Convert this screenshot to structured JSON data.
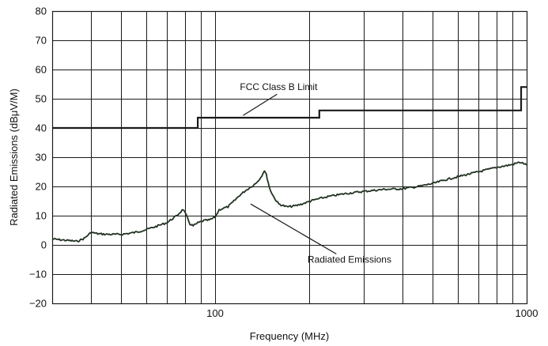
{
  "chart_data": {
    "type": "line",
    "title": "",
    "xlabel": "Frequency (MHz)",
    "ylabel": "Radiated Emissions (dBμV/M)",
    "x_scale": "log",
    "xlim": [
      30,
      1000
    ],
    "ylim": [
      -20,
      80
    ],
    "grid": true,
    "x_major_ticks": [
      100,
      1000
    ],
    "x_tick_labels": [
      "100",
      "1000"
    ],
    "x_minor_grid": [
      30,
      40,
      50,
      60,
      70,
      80,
      90,
      200,
      300,
      400,
      500,
      600,
      700,
      800,
      900
    ],
    "y_ticks": [
      -20,
      -10,
      0,
      10,
      20,
      30,
      40,
      50,
      60,
      70,
      80
    ],
    "y_tick_labels": [
      "−20",
      "−10",
      "0",
      "10",
      "20",
      "30",
      "40",
      "50",
      "60",
      "70",
      "80"
    ],
    "series": [
      {
        "name": "FCC Class B Limit",
        "color": "#1a1a1a",
        "step": true,
        "x": [
          30,
          88,
          88,
          216,
          216,
          960,
          960,
          1000
        ],
        "y": [
          40,
          40,
          43.5,
          43.5,
          46,
          46,
          54,
          54
        ]
      },
      {
        "name": "Radiated Emissions",
        "color": "#223322",
        "x": [
          30,
          33,
          36,
          38,
          40,
          42,
          45,
          50,
          55,
          60,
          65,
          70,
          75,
          79,
          81,
          83,
          85,
          88,
          92,
          96,
          100,
          103,
          106,
          110,
          115,
          120,
          125,
          130,
          135,
          140,
          144,
          146,
          148,
          150,
          155,
          160,
          170,
          180,
          190,
          200,
          210,
          230,
          260,
          300,
          350,
          400,
          450,
          500,
          550,
          600,
          700,
          800,
          900,
          950,
          970,
          1000
        ],
        "y": [
          2,
          1.6,
          1.2,
          2.2,
          4.3,
          3.8,
          3.6,
          3.6,
          4.2,
          5.2,
          6.4,
          7.6,
          9.8,
          12.2,
          9.8,
          7.2,
          6.5,
          7.5,
          8.3,
          8.5,
          9.5,
          12.0,
          12.5,
          13.0,
          15.0,
          17.0,
          18.5,
          19.8,
          21.0,
          23.0,
          25.5,
          24.0,
          21.5,
          19.0,
          16.0,
          14.0,
          13.0,
          13.3,
          14.0,
          14.8,
          15.5,
          16.5,
          17.5,
          18.3,
          19.0,
          19.2,
          20.0,
          21.0,
          22.3,
          23.3,
          25.0,
          26.5,
          27.5,
          28.3,
          28.0,
          27.3
        ]
      }
    ],
    "annotations": [
      {
        "text": "FCC Class B Limit",
        "x": 160,
        "y": 54
      },
      {
        "text": "Radiated Emissions",
        "x": 270,
        "y": -5
      }
    ]
  }
}
